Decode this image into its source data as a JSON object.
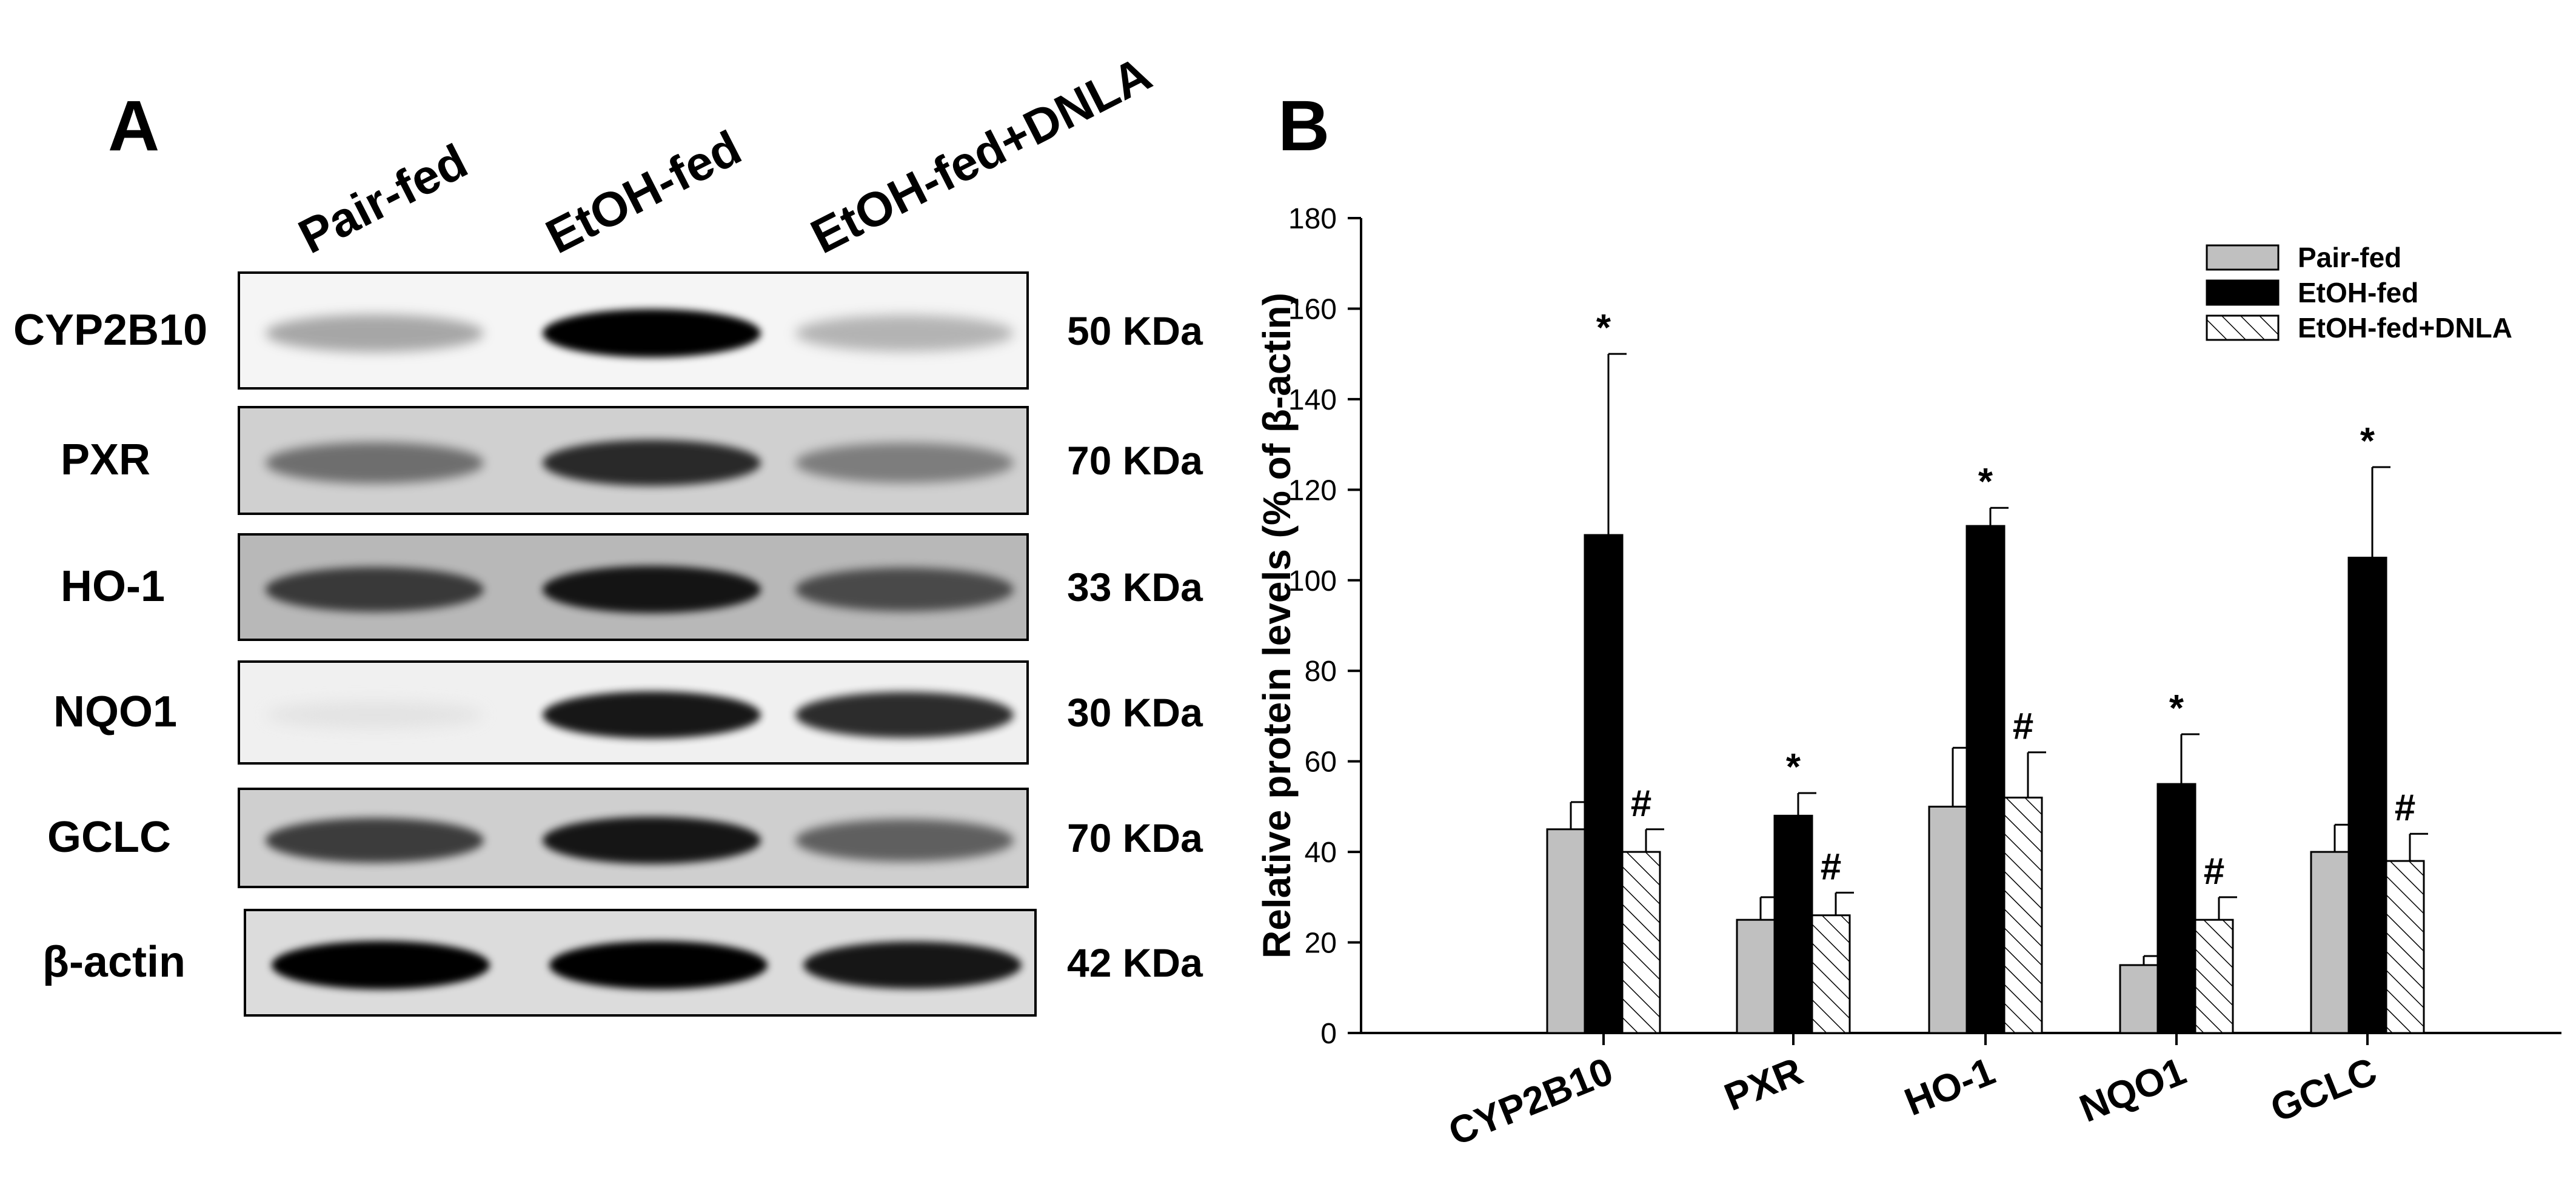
{
  "panel_a": {
    "letter": "A",
    "lanes": [
      "Pair-fed",
      "EtOH-fed",
      "EtOH-fed+DNLA"
    ],
    "blots": [
      {
        "name": "CYP2B10",
        "kda": "50 KDa",
        "bg": "#f5f5f5",
        "band_intensity": [
          0.55,
          1.0,
          0.5
        ]
      },
      {
        "name": "PXR",
        "kda": "70 KDa",
        "bg": "#d0d0d0",
        "band_intensity": [
          0.7,
          0.9,
          0.65
        ]
      },
      {
        "name": "HO-1",
        "kda": "33 KDa",
        "bg": "#b8b8b8",
        "band_intensity": [
          0.85,
          0.95,
          0.8
        ]
      },
      {
        "name": "NQO1",
        "kda": "30 KDa",
        "bg": "#f0f0f0",
        "band_intensity": [
          0.12,
          0.95,
          0.9
        ]
      },
      {
        "name": "GCLC",
        "kda": "70 KDa",
        "bg": "#cfcfcf",
        "band_intensity": [
          0.85,
          0.95,
          0.75
        ]
      },
      {
        "name": "β-actin",
        "kda": "42 KDa",
        "bg": "#dcdcdc",
        "band_intensity": [
          1.0,
          1.0,
          0.95
        ]
      }
    ]
  },
  "panel_b": {
    "letter": "B"
  },
  "chart_data": {
    "type": "bar",
    "ylabel": "Relative protein levels (% of β-actin)",
    "ylim": [
      0,
      180
    ],
    "yticks": [
      0,
      20,
      40,
      60,
      80,
      100,
      120,
      140,
      160,
      180
    ],
    "categories": [
      "CYP2B10",
      "PXR",
      "HO-1",
      "NQO1",
      "GCLC"
    ],
    "series": [
      {
        "name": "Pair-fed",
        "color": "#c0c0c0",
        "pattern": "solid",
        "values": [
          45,
          25,
          50,
          15,
          40
        ],
        "errors": [
          6,
          5,
          13,
          2,
          6
        ],
        "marks": [
          "",
          "",
          "",
          "",
          ""
        ]
      },
      {
        "name": "EtOH-fed",
        "color": "#000000",
        "pattern": "solid",
        "values": [
          110,
          48,
          112,
          55,
          105
        ],
        "errors": [
          40,
          5,
          4,
          11,
          20
        ],
        "marks": [
          "*",
          "*",
          "*",
          "*",
          "*"
        ]
      },
      {
        "name": "EtOH-fed+DNLA",
        "color": "#ffffff",
        "pattern": "hatch",
        "values": [
          40,
          26,
          52,
          25,
          38
        ],
        "errors": [
          5,
          5,
          10,
          5,
          6
        ],
        "marks": [
          "#",
          "#",
          "#",
          "#",
          "#"
        ]
      }
    ],
    "legend": "top-right"
  }
}
